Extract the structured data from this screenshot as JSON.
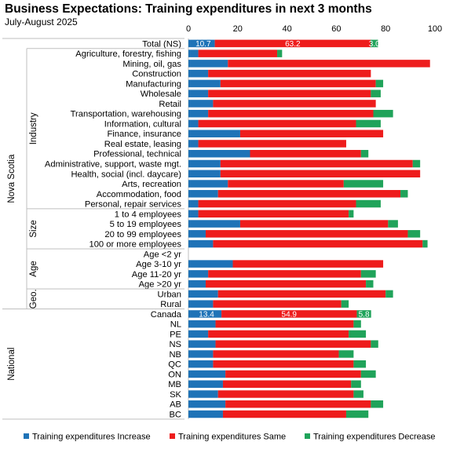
{
  "title": "Business Expectations: Training expenditures in next 3 months",
  "subtitle": "July-August 2025",
  "chart_data": {
    "type": "bar",
    "orientation": "horizontal",
    "stacked": true,
    "xlim": [
      0,
      100
    ],
    "xticks": [
      "0",
      "20",
      "40",
      "60",
      "80",
      "100"
    ],
    "grid": false,
    "legend_position": "bottom",
    "colors": {
      "increase": "#1f73b7",
      "same": "#ee1c1c",
      "decrease": "#20a35a"
    },
    "series": [
      {
        "name": "Training expenditures Increase",
        "key": "increase"
      },
      {
        "name": "Training expenditures Same",
        "key": "same"
      },
      {
        "name": "Training expenditures Decrease",
        "key": "decrease"
      }
    ],
    "outer_groups": [
      {
        "label": "Nova Scotia",
        "inner": [
          "Industry",
          "Size",
          "Age",
          "Geo."
        ]
      },
      {
        "label": "National",
        "inner": []
      }
    ],
    "inner_groups": [
      "Industry",
      "Size",
      "Age",
      "Geo."
    ],
    "rows": [
      {
        "label": "Total (NS)",
        "group": "",
        "values": [
          10.7,
          63.2,
          3.0
        ],
        "data_labels": [
          "10.7",
          "63.2",
          "3.0"
        ]
      },
      {
        "label": "Agriculture, forestry, fishing",
        "group": "Industry",
        "values": [
          4,
          32,
          2
        ]
      },
      {
        "label": "Mining, oil, gas",
        "group": "Industry",
        "values": [
          16,
          82,
          0
        ]
      },
      {
        "label": "Construction",
        "group": "Industry",
        "values": [
          8,
          66,
          0
        ]
      },
      {
        "label": "Manufacturing",
        "group": "Industry",
        "values": [
          13,
          63,
          3
        ]
      },
      {
        "label": "Wholesale",
        "group": "Industry",
        "values": [
          8,
          66,
          4
        ]
      },
      {
        "label": "Retail",
        "group": "Industry",
        "values": [
          10,
          66,
          0
        ]
      },
      {
        "label": "Transportation, warehousing",
        "group": "Industry",
        "values": [
          8,
          67,
          8
        ]
      },
      {
        "label": "Information, cultural",
        "group": "Industry",
        "values": [
          4,
          64,
          10
        ]
      },
      {
        "label": "Finance, insurance",
        "group": "Industry",
        "values": [
          21,
          58,
          0
        ]
      },
      {
        "label": "Real estate, leasing",
        "group": "Industry",
        "values": [
          4,
          60,
          0
        ]
      },
      {
        "label": "Professional, technical",
        "group": "Industry",
        "values": [
          25,
          45,
          3
        ]
      },
      {
        "label": "Administrative, support, waste mgt.",
        "group": "Industry",
        "values": [
          13,
          78,
          3
        ]
      },
      {
        "label": "Health, social (incl. daycare)",
        "group": "Industry",
        "values": [
          13,
          81,
          0
        ]
      },
      {
        "label": "Arts, recreation",
        "group": "Industry",
        "values": [
          16,
          47,
          16
        ]
      },
      {
        "label": "Accommodation, food",
        "group": "Industry",
        "values": [
          12,
          74,
          3
        ]
      },
      {
        "label": "Personal, repair services",
        "group": "Industry",
        "values": [
          4,
          64,
          10
        ]
      },
      {
        "label": "1 to 4 employees",
        "group": "Size",
        "values": [
          4,
          61,
          2
        ]
      },
      {
        "label": "5 to 19 employees",
        "group": "Size",
        "values": [
          21,
          60,
          4
        ]
      },
      {
        "label": "20 to 99 employees",
        "group": "Size",
        "values": [
          7,
          82,
          5
        ]
      },
      {
        "label": "100 or more employees",
        "group": "Size",
        "values": [
          10,
          85,
          2
        ]
      },
      {
        "label": "Age <2 yr",
        "group": "Age",
        "values": [
          0,
          0,
          0
        ]
      },
      {
        "label": "Age 3-10 yr",
        "group": "Age",
        "values": [
          18,
          61,
          0
        ]
      },
      {
        "label": "Age 11-20 yr",
        "group": "Age",
        "values": [
          8,
          62,
          6
        ]
      },
      {
        "label": "Age >20 yr",
        "group": "Age",
        "values": [
          7,
          65,
          3
        ]
      },
      {
        "label": "Urban",
        "group": "Geo.",
        "values": [
          12,
          68,
          3
        ]
      },
      {
        "label": "Rural",
        "group": "Geo.",
        "values": [
          10,
          52,
          3
        ]
      },
      {
        "label": "Canada",
        "group": "National",
        "values": [
          13.4,
          54.9,
          5.8
        ],
        "data_labels": [
          "13.4",
          "54.9",
          "5.8"
        ]
      },
      {
        "label": "NL",
        "group": "National",
        "values": [
          11,
          56,
          3
        ]
      },
      {
        "label": "PE",
        "group": "National",
        "values": [
          8,
          57,
          7
        ]
      },
      {
        "label": "NS",
        "group": "National",
        "values": [
          11,
          63,
          3
        ]
      },
      {
        "label": "NB",
        "group": "National",
        "values": [
          10,
          51,
          6
        ]
      },
      {
        "label": "QC",
        "group": "National",
        "values": [
          10,
          57,
          5
        ]
      },
      {
        "label": "ON",
        "group": "National",
        "values": [
          15,
          55,
          6
        ]
      },
      {
        "label": "MB",
        "group": "National",
        "values": [
          14,
          52,
          4
        ]
      },
      {
        "label": "SK",
        "group": "National",
        "values": [
          12,
          55,
          4
        ]
      },
      {
        "label": "AB",
        "group": "National",
        "values": [
          15,
          59,
          5
        ]
      },
      {
        "label": "BC",
        "group": "National",
        "values": [
          14,
          50,
          9
        ]
      }
    ]
  }
}
